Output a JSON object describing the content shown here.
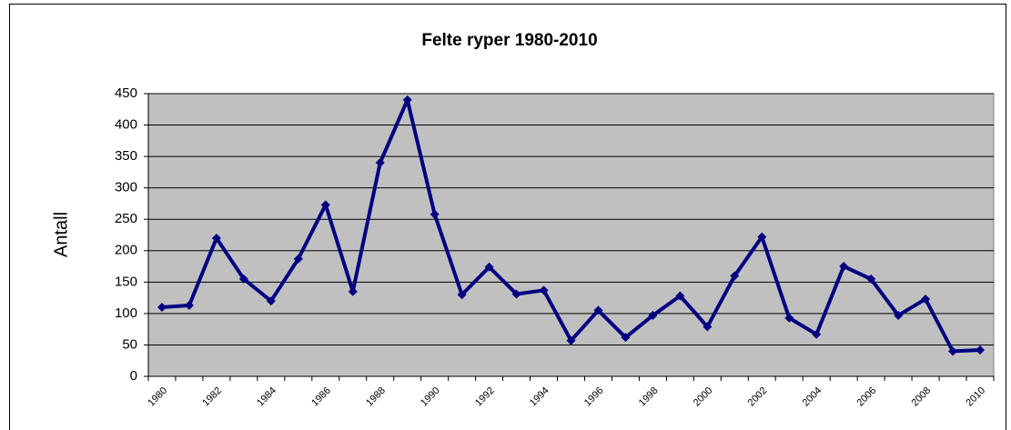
{
  "chart_data": {
    "type": "line",
    "title": "Felte ryper 1980-2010",
    "y_label": "Antall",
    "categories": [
      "1980",
      null,
      "1982",
      null,
      "1984",
      null,
      "1986",
      null,
      "1988",
      null,
      "1990",
      null,
      "1992",
      null,
      "1994",
      null,
      "1996",
      null,
      "1998",
      null,
      "2000",
      null,
      "2002",
      null,
      "2004",
      null,
      "2006",
      null,
      "2008",
      null,
      "2010"
    ],
    "series": [
      {
        "name": "Felte ryper",
        "color": "#000080",
        "values": [
          110,
          113,
          220,
          155,
          120,
          187,
          273,
          135,
          340,
          440,
          258,
          130,
          174,
          131,
          137,
          57,
          105,
          62,
          97,
          128,
          79,
          160,
          222,
          93,
          67,
          175,
          155,
          97,
          123,
          40,
          42
        ]
      }
    ],
    "ylim": [
      0,
      450
    ],
    "yticks": [
      0,
      50,
      100,
      150,
      200,
      250,
      300,
      350,
      400,
      450
    ],
    "grid": true,
    "plot_background": "#c0c0c0"
  }
}
